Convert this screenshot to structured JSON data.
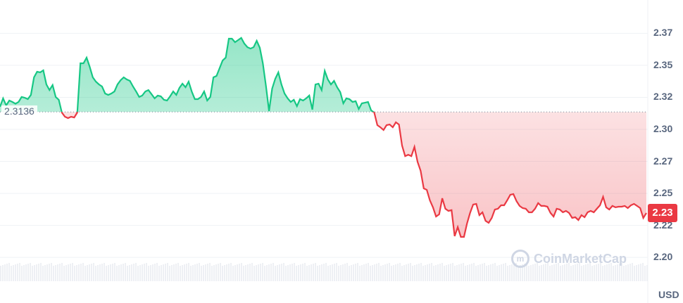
{
  "chart_data": {
    "type": "area",
    "baseline": 2.3136,
    "baseline_label": "2.3136",
    "current_price_label": "2.23",
    "currency": "USD",
    "ylim": [
      2.189,
      2.392
    ],
    "y_ticks": [
      2.2,
      2.225,
      2.25,
      2.275,
      2.3,
      2.325,
      2.35,
      2.375
    ],
    "y_tick_labels": [
      "2.20",
      "2.22",
      "2.25",
      "2.27",
      "2.30",
      "2.32",
      "2.35",
      "2.37"
    ],
    "grid": true,
    "watermark": "CoinMarketCap",
    "colors": {
      "up": "#16c784",
      "down": "#ea3943",
      "grid": "#eff2f5",
      "axis_text": "#58667e"
    },
    "values": [
      2.3176,
      2.3242,
      2.3187,
      2.3225,
      2.3214,
      2.32,
      2.3214,
      2.3253,
      2.3247,
      2.3236,
      2.3269,
      2.3406,
      2.345,
      2.3445,
      2.3461,
      2.3351,
      2.3307,
      2.3346,
      2.3253,
      2.3231,
      2.3132,
      2.3099,
      2.3088,
      2.3099,
      2.3093,
      2.3132,
      2.3516,
      2.3516,
      2.356,
      2.3489,
      2.3406,
      2.3373,
      2.3351,
      2.3335,
      2.328,
      2.3269,
      2.328,
      2.3296,
      2.3351,
      2.3384,
      2.3406,
      2.339,
      2.3379,
      2.3335,
      2.3296,
      2.3253,
      2.3264,
      2.3296,
      2.3307,
      2.3275,
      2.3242,
      2.3264,
      2.3258,
      2.3231,
      2.3225,
      2.3258,
      2.3296,
      2.3269,
      2.3324,
      2.3357,
      2.3329,
      2.3373,
      2.3296,
      2.3236,
      2.3236,
      2.3253,
      2.3296,
      2.3225,
      2.3253,
      2.3406,
      2.3417,
      2.3478,
      2.3538,
      2.356,
      2.3708,
      2.3708,
      2.3681,
      2.3697,
      2.3714,
      2.367,
      2.3642,
      2.3631,
      2.3642,
      2.3692,
      2.3637,
      2.3516,
      2.334,
      2.3143,
      2.3318,
      2.3395,
      2.3445,
      2.3351,
      2.328,
      2.3242,
      2.3214,
      2.3231,
      2.3181,
      2.3236,
      2.3225,
      2.3242,
      2.3264,
      2.3154,
      2.3351,
      2.3357,
      2.3307,
      2.3456,
      2.339,
      2.3351,
      2.3379,
      2.3329,
      2.3291,
      2.3203,
      2.3242,
      2.3236,
      2.3214,
      2.322,
      2.3159,
      2.3203,
      2.3208,
      2.3214,
      2.3148,
      2.3132,
      2.3033,
      2.3016,
      2.2995,
      2.3033,
      2.3038,
      2.3016,
      2.3055,
      2.3038,
      2.2874,
      2.2791,
      2.2802,
      2.2791,
      2.2863,
      2.2747,
      2.2676,
      2.2539,
      2.2528,
      2.2446,
      2.2391,
      2.2319,
      2.2336,
      2.2462,
      2.238,
      2.2363,
      2.2369,
      2.2166,
      2.2237,
      2.216,
      2.216,
      2.2264,
      2.2347,
      2.2413,
      2.2418,
      2.233,
      2.2352,
      2.2286,
      2.227,
      2.2308,
      2.2374,
      2.238,
      2.2407,
      2.2407,
      2.2446,
      2.2489,
      2.2495,
      2.244,
      2.2402,
      2.2385,
      2.238,
      2.2352,
      2.2352,
      2.238,
      2.2424,
      2.2402,
      2.2402,
      2.2396,
      2.2347,
      2.2319,
      2.238,
      2.2374,
      2.2352,
      2.2363,
      2.2347,
      2.2308,
      2.2314,
      2.2292,
      2.233,
      2.2314,
      2.2352,
      2.2363,
      2.2352,
      2.238,
      2.2407,
      2.2473,
      2.2391,
      2.2374,
      2.2402,
      2.2391,
      2.2396,
      2.2396,
      2.2402,
      2.2385,
      2.2407,
      2.2418,
      2.2402,
      2.2385,
      2.2308,
      2.2347
    ]
  }
}
